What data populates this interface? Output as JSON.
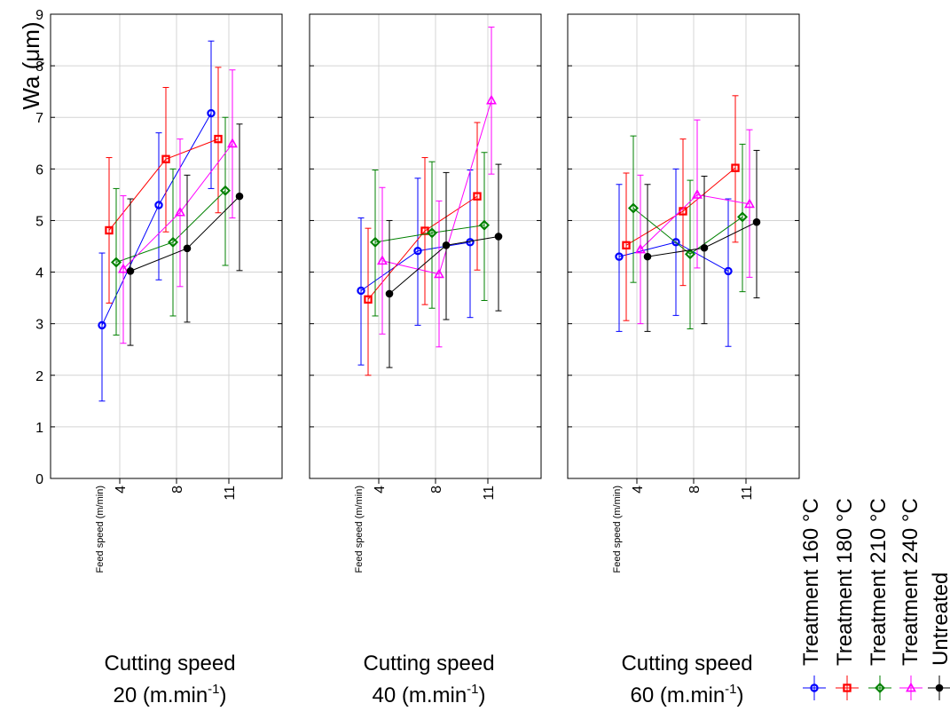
{
  "chart_data": {
    "type": "line",
    "ylabel": "Wa (μm)",
    "ylim": [
      0,
      9
    ],
    "yticks": [
      "0",
      "1",
      "2",
      "3",
      "4",
      "5",
      "6",
      "7",
      "8",
      "9"
    ],
    "categories": [
      "4",
      "8",
      "11"
    ],
    "x_axis_title": "Feed speed (m/min)",
    "grid": true,
    "legend_position": "right",
    "panel_title_line1": "Cutting speed",
    "panel_unit_prefix": "(m.min",
    "panel_unit_exp": "-1",
    "panel_unit_suffix": ")",
    "panels": [
      {
        "speed": "20",
        "series": [
          {
            "name": "Treatment 160 °C",
            "color": "#0000ff",
            "marker": "circle",
            "values": [
              2.97,
              5.3,
              7.08
            ],
            "lower": [
              1.5,
              3.85,
              5.62
            ],
            "upper": [
              4.37,
              6.7,
              8.48
            ]
          },
          {
            "name": "Treatment 180 °C",
            "color": "#ff0000",
            "marker": "square",
            "values": [
              4.81,
              6.19,
              6.58
            ],
            "lower": [
              3.4,
              4.78,
              5.15
            ],
            "upper": [
              6.22,
              7.58,
              7.97
            ]
          },
          {
            "name": "Treatment 210 °C",
            "color": "#008000",
            "marker": "diamond",
            "values": [
              4.19,
              4.58,
              5.58
            ],
            "lower": [
              2.78,
              3.15,
              4.13
            ],
            "upper": [
              5.62,
              6.0,
              7.0
            ]
          },
          {
            "name": "Treatment 240 °C",
            "color": "#ff00ff",
            "marker": "triangle",
            "values": [
              4.06,
              5.16,
              6.49
            ],
            "lower": [
              2.62,
              3.72,
              5.05
            ],
            "upper": [
              5.48,
              6.58,
              7.92
            ]
          },
          {
            "name": "Untreated",
            "color": "#000000",
            "marker": "dot",
            "values": [
              4.02,
              4.46,
              5.47
            ],
            "lower": [
              2.58,
              3.03,
              4.03
            ],
            "upper": [
              5.42,
              5.88,
              6.87
            ]
          }
        ]
      },
      {
        "speed": "40",
        "series": [
          {
            "name": "Treatment 160 °C",
            "color": "#0000ff",
            "marker": "circle",
            "values": [
              3.64,
              4.41,
              4.58
            ],
            "lower": [
              2.2,
              2.97,
              3.12
            ],
            "upper": [
              5.05,
              5.82,
              5.98
            ]
          },
          {
            "name": "Treatment 180 °C",
            "color": "#ff0000",
            "marker": "square",
            "values": [
              3.47,
              4.8,
              5.47
            ],
            "lower": [
              2.0,
              3.37,
              4.04
            ],
            "upper": [
              4.85,
              6.22,
              6.9
            ]
          },
          {
            "name": "Treatment 210 °C",
            "color": "#008000",
            "marker": "diamond",
            "values": [
              4.58,
              4.76,
              4.91
            ],
            "lower": [
              3.15,
              3.3,
              3.45
            ],
            "upper": [
              5.98,
              6.14,
              6.32
            ]
          },
          {
            "name": "Treatment 240 °C",
            "color": "#ff00ff",
            "marker": "triangle",
            "values": [
              4.22,
              3.96,
              7.33
            ],
            "lower": [
              2.8,
              2.55,
              5.9
            ],
            "upper": [
              5.64,
              5.38,
              8.75
            ]
          },
          {
            "name": "Untreated",
            "color": "#000000",
            "marker": "dot",
            "values": [
              3.58,
              4.52,
              4.69
            ],
            "lower": [
              2.15,
              3.08,
              3.25
            ],
            "upper": [
              5.0,
              5.93,
              6.09
            ]
          }
        ]
      },
      {
        "speed": "60",
        "series": [
          {
            "name": "Treatment 160 °C",
            "color": "#0000ff",
            "marker": "circle",
            "values": [
              4.3,
              4.58,
              4.02
            ],
            "lower": [
              2.85,
              3.16,
              2.56
            ],
            "upper": [
              5.7,
              6.0,
              5.42
            ]
          },
          {
            "name": "Treatment 180 °C",
            "color": "#ff0000",
            "marker": "square",
            "values": [
              4.52,
              5.18,
              6.02
            ],
            "lower": [
              3.06,
              3.74,
              4.58
            ],
            "upper": [
              5.92,
              6.58,
              7.42
            ]
          },
          {
            "name": "Treatment 210 °C",
            "color": "#008000",
            "marker": "diamond",
            "values": [
              5.24,
              4.35,
              5.07
            ],
            "lower": [
              3.8,
              2.9,
              3.62
            ],
            "upper": [
              6.64,
              5.78,
              6.48
            ]
          },
          {
            "name": "Treatment 240 °C",
            "color": "#ff00ff",
            "marker": "triangle",
            "values": [
              4.44,
              5.5,
              5.32
            ],
            "lower": [
              3.0,
              4.08,
              3.9
            ],
            "upper": [
              5.88,
              6.95,
              6.76
            ]
          },
          {
            "name": "Untreated",
            "color": "#000000",
            "marker": "dot",
            "values": [
              4.3,
              4.47,
              4.97
            ],
            "lower": [
              2.85,
              3.0,
              3.5
            ],
            "upper": [
              5.7,
              5.86,
              6.36
            ]
          }
        ]
      }
    ]
  }
}
